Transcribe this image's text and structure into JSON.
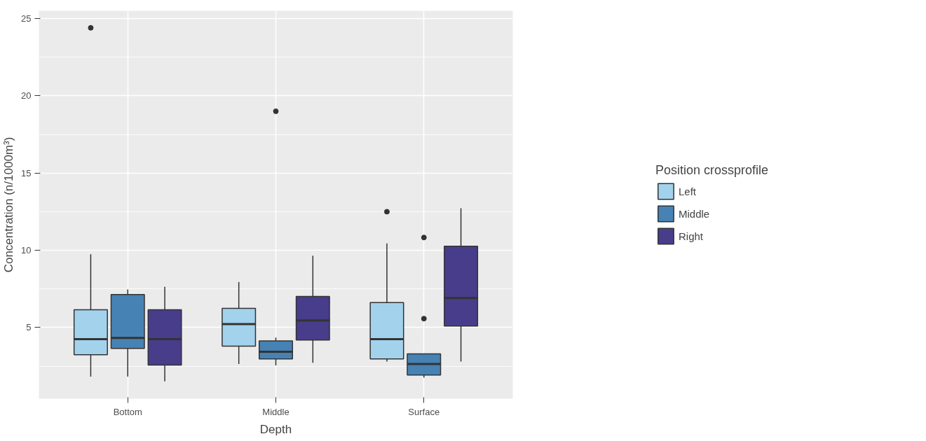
{
  "chart_data": {
    "type": "box",
    "xlabel": "Depth",
    "ylabel": "Concentration (n/1000m³)",
    "legend_title": "Position crossprofile",
    "categories": [
      "Bottom",
      "Middle",
      "Surface"
    ],
    "ylim": [
      0.4,
      25.5
    ],
    "yticks": [
      5,
      10,
      15,
      20,
      25
    ],
    "grid": true,
    "legend": "right",
    "series": [
      {
        "name": "Left",
        "color": "#a3d2ec",
        "boxes": [
          {
            "low": 1.83,
            "q1": 3.24,
            "median": 4.25,
            "q3": 6.15,
            "high": 9.75,
            "outliers": [
              24.4
            ]
          },
          {
            "low": 2.64,
            "q1": 3.8,
            "median": 5.23,
            "q3": 6.25,
            "high": 7.95
          },
          {
            "low": 2.8,
            "q1": 2.97,
            "median": 4.25,
            "q3": 6.62,
            "high": 10.45,
            "outliers": [
              12.5
            ]
          }
        ]
      },
      {
        "name": "Middle",
        "color": "#4682b4",
        "boxes": [
          {
            "low": 1.83,
            "q1": 3.65,
            "median": 4.33,
            "q3": 7.14,
            "high": 7.47
          },
          {
            "low": 2.55,
            "q1": 2.97,
            "median": 3.44,
            "q3": 4.14,
            "high": 4.35,
            "outliers": [
              19.0
            ]
          },
          {
            "low": 1.76,
            "q1": 1.93,
            "median": 2.64,
            "q3": 3.3,
            "high": 3.3,
            "outliers": [
              10.83,
              5.58
            ]
          }
        ]
      },
      {
        "name": "Right",
        "color": "#483d8b",
        "boxes": [
          {
            "low": 1.52,
            "q1": 2.58,
            "median": 4.25,
            "q3": 6.15,
            "high": 7.64
          },
          {
            "low": 2.72,
            "q1": 4.2,
            "median": 5.46,
            "q3": 7.02,
            "high": 9.65
          },
          {
            "low": 2.8,
            "q1": 5.1,
            "median": 6.91,
            "q3": 10.27,
            "high": 12.72
          }
        ]
      }
    ]
  }
}
